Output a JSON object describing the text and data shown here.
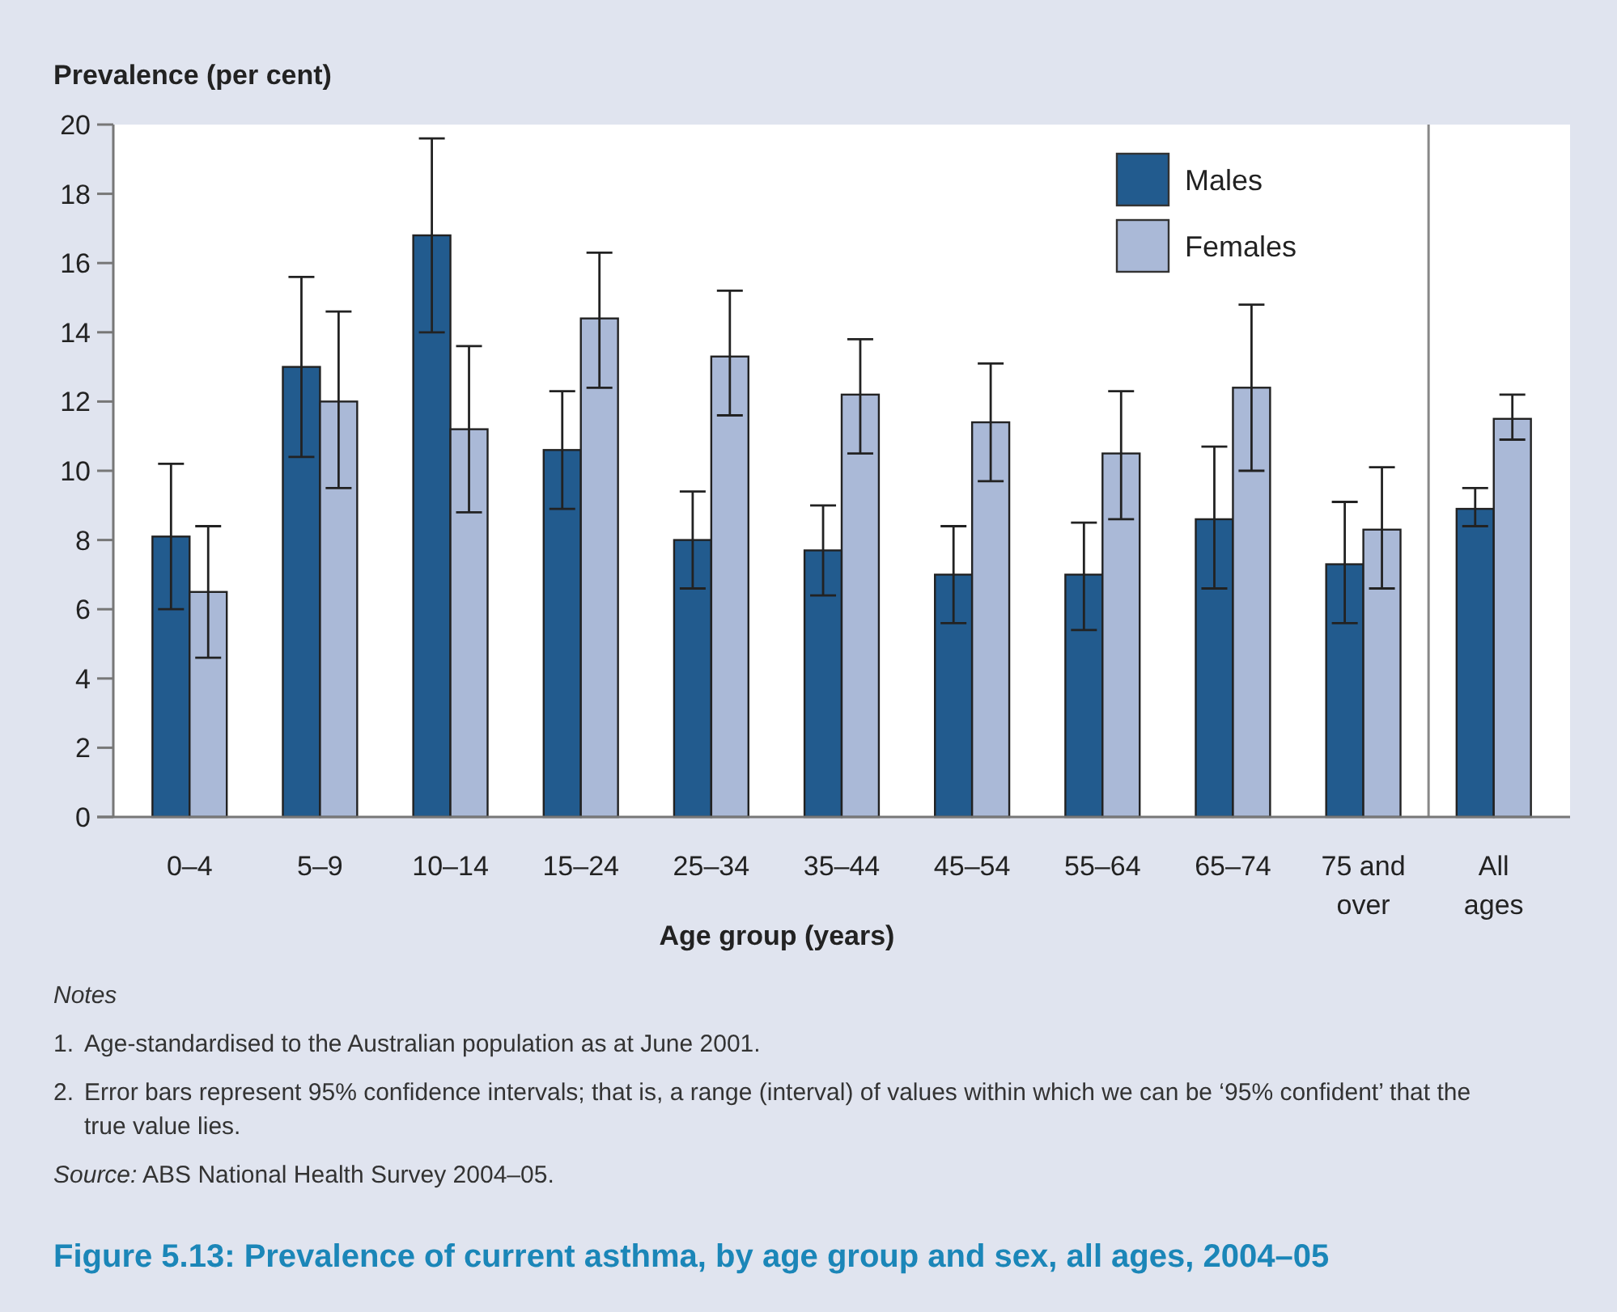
{
  "chart_data": {
    "type": "bar",
    "title": "Figure 5.13: Prevalence of current asthma, by age group and sex, all ages, 2004–05",
    "ylabel": "Prevalence (per cent)",
    "xlabel": "Age group (years)",
    "categories": [
      "0–4",
      "5–9",
      "10–14",
      "15–24",
      "25–34",
      "35–44",
      "45–54",
      "55–64",
      "65–74",
      "75 and over",
      "All ages"
    ],
    "series": [
      {
        "name": "Males",
        "color": "#225b8e",
        "values": [
          8.1,
          13.0,
          16.8,
          10.6,
          8.0,
          7.7,
          7.0,
          7.0,
          8.6,
          7.3,
          8.9
        ],
        "errors": [
          [
            6.0,
            10.2
          ],
          [
            10.4,
            15.6
          ],
          [
            14.0,
            19.6
          ],
          [
            8.9,
            12.3
          ],
          [
            6.6,
            9.4
          ],
          [
            6.4,
            9.0
          ],
          [
            5.6,
            8.4
          ],
          [
            5.4,
            8.5
          ],
          [
            6.6,
            10.7
          ],
          [
            5.6,
            9.1
          ],
          [
            8.4,
            9.5
          ]
        ]
      },
      {
        "name": "Females",
        "color": "#aab9d7",
        "values": [
          6.5,
          12.0,
          11.2,
          14.4,
          13.3,
          12.2,
          11.4,
          10.5,
          12.4,
          8.3,
          11.5
        ],
        "errors": [
          [
            4.6,
            8.4
          ],
          [
            9.5,
            14.6
          ],
          [
            8.8,
            13.6
          ],
          [
            12.4,
            16.3
          ],
          [
            11.6,
            15.2
          ],
          [
            10.5,
            13.8
          ],
          [
            9.7,
            13.1
          ],
          [
            8.6,
            12.3
          ],
          [
            10.0,
            14.8
          ],
          [
            6.6,
            10.1
          ],
          [
            10.9,
            12.2
          ]
        ]
      }
    ],
    "ylim": [
      0,
      20
    ],
    "yticks": [
      0,
      2,
      4,
      6,
      8,
      10,
      12,
      14,
      16,
      18,
      20
    ],
    "grid": false,
    "legend": "top right",
    "annotations": [
      "Notes",
      "1.  Age-standardised to the Australian population as at June 2001.",
      "2.  Error bars represent 95% confidence intervals; that is, a range (interval) of values within which we can be ‘95% confident’ that the true value lies.",
      "Source: ABS National Health Survey 2004–05."
    ]
  }
}
